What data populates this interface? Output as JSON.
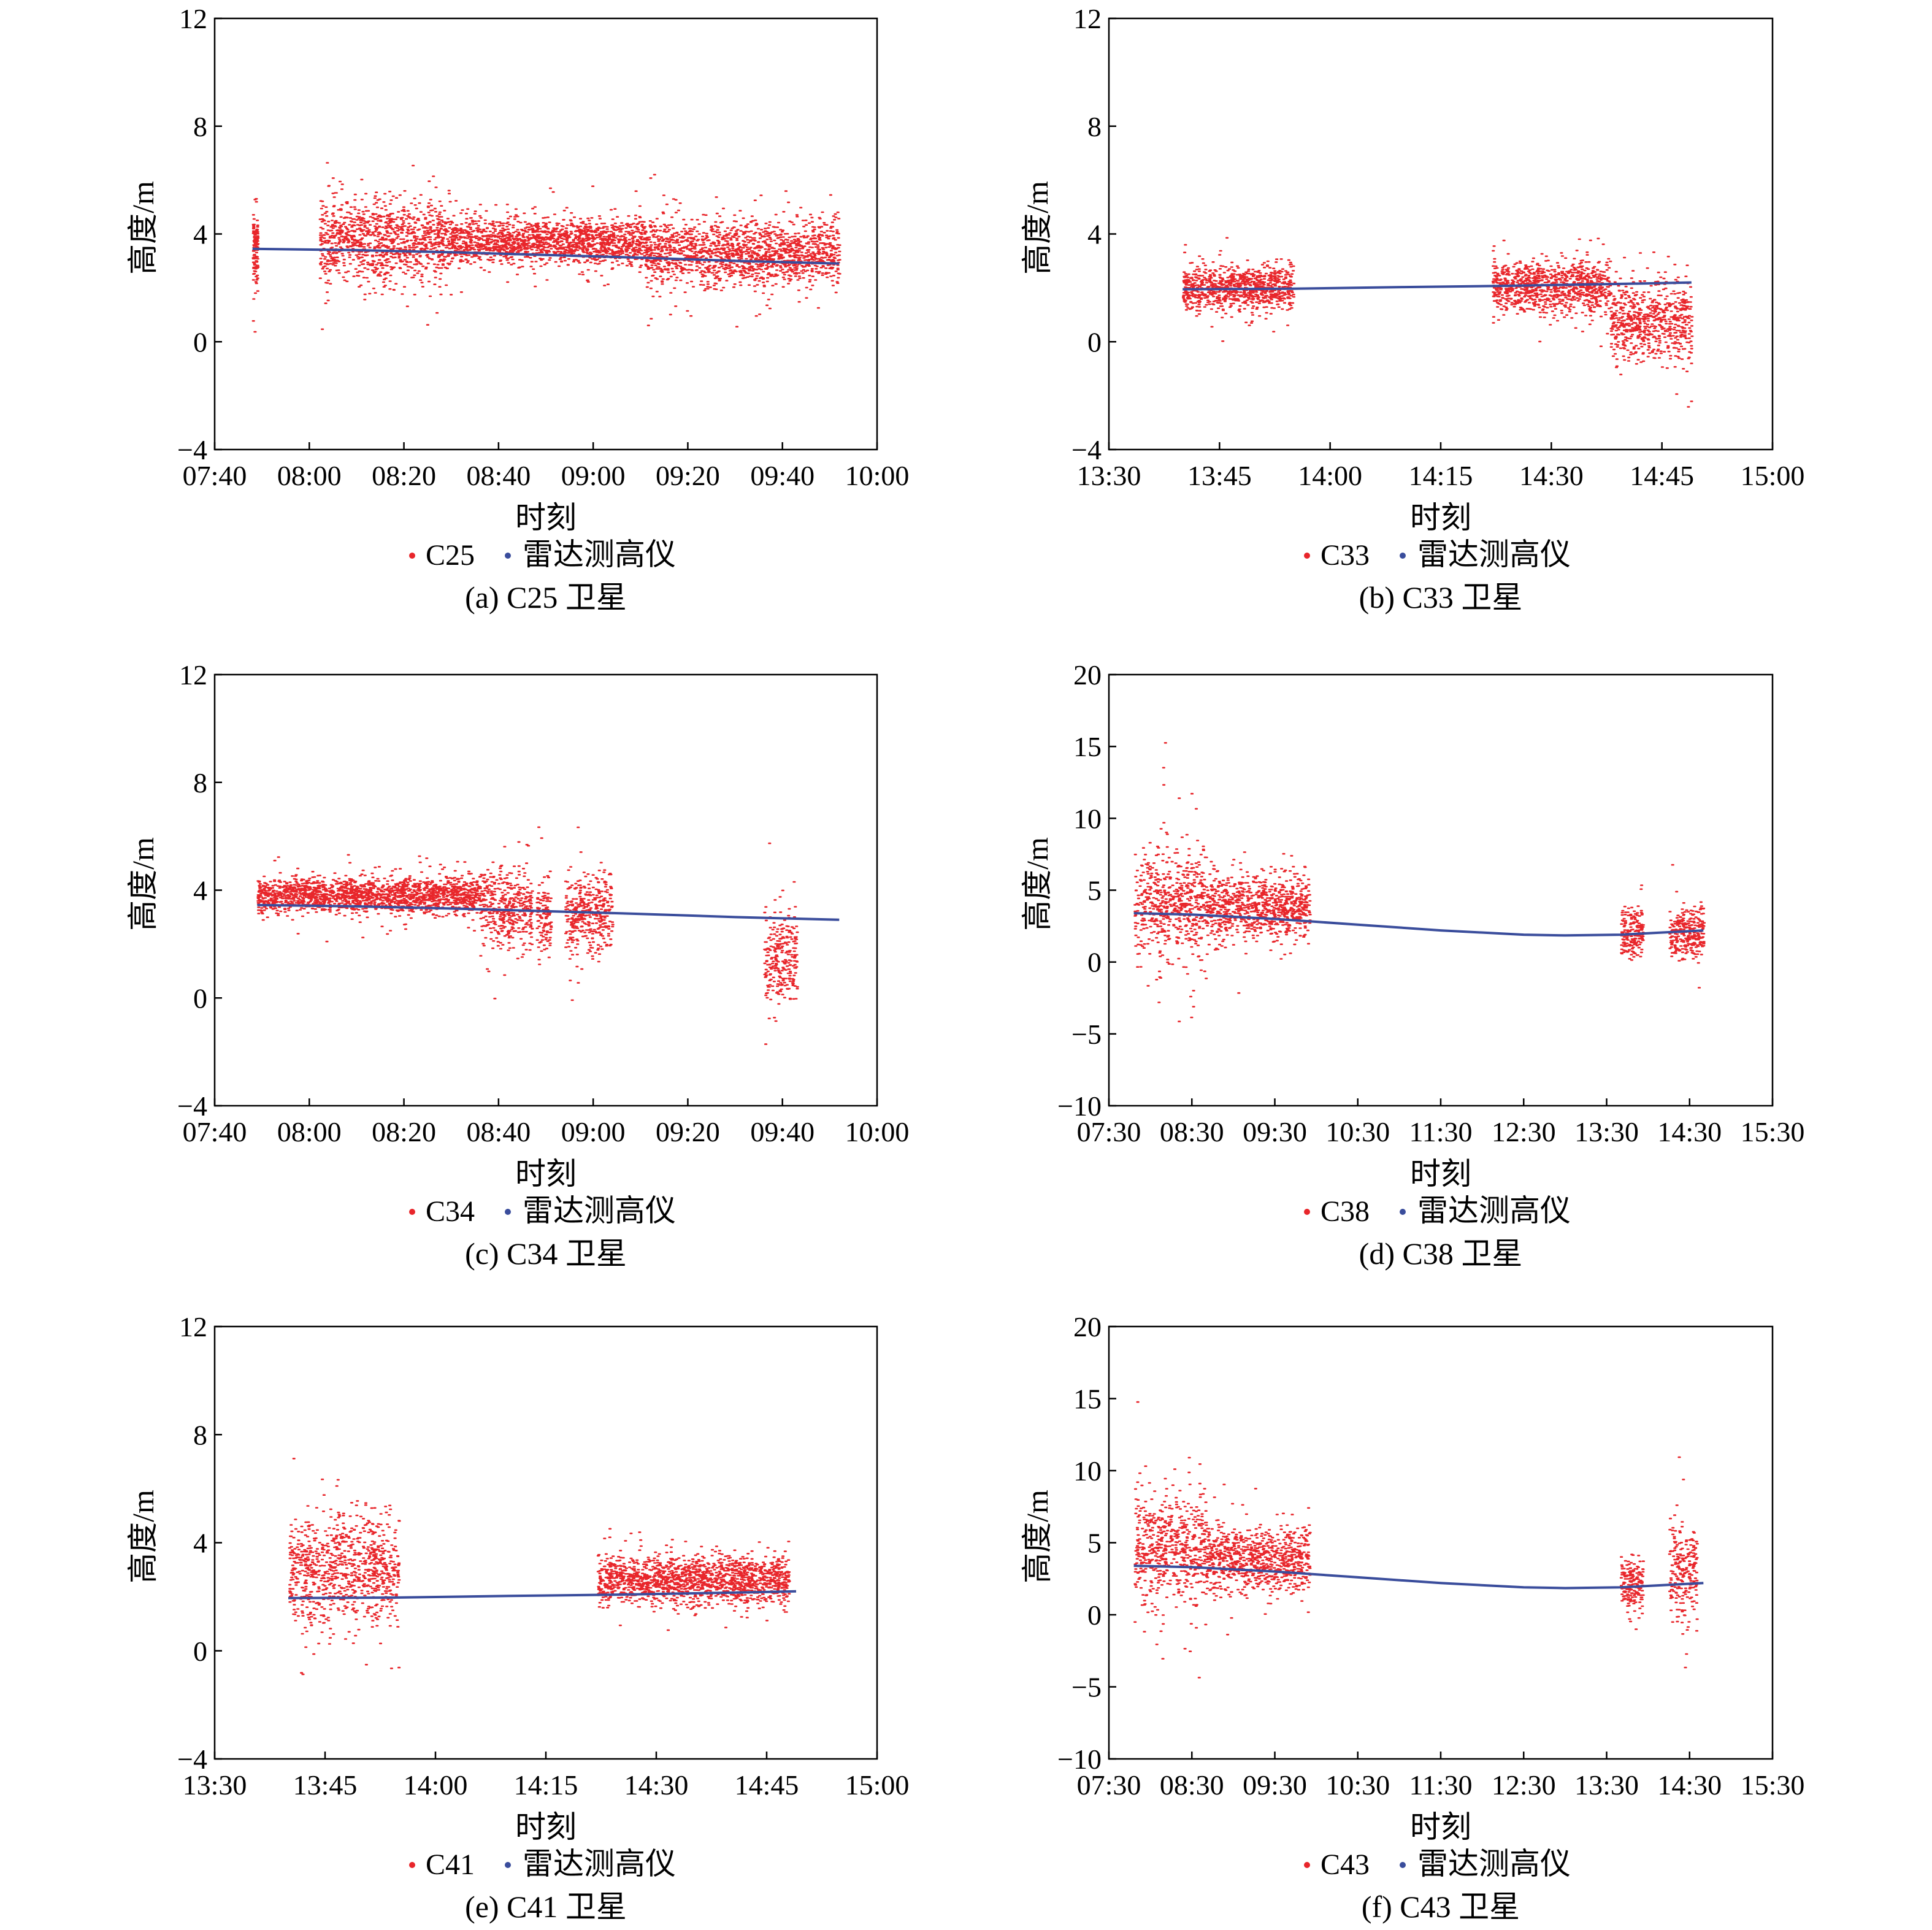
{
  "colors": {
    "series_dots": "#e8262b",
    "series_line": "#3a4d9c",
    "axis": "#000000",
    "background": "#ffffff"
  },
  "chart_data": [
    {
      "panel": "a",
      "type": "scatter",
      "xlabel": "时刻",
      "ylabel": "高度/m",
      "xlim": [
        "07:40",
        "10:00"
      ],
      "ylim": [
        -4,
        12
      ],
      "xticks": [
        "07:40",
        "08:00",
        "08:20",
        "08:40",
        "09:00",
        "09:20",
        "09:40",
        "10:00"
      ],
      "yticks": [
        "-4",
        "0",
        "4",
        "8",
        "12"
      ],
      "caption": "(a) C25 卫星",
      "legend": [
        "C25",
        "雷达测高仪"
      ],
      "series": [
        {
          "name": "C25",
          "kind": "points",
          "segments": [
            {
              "t_start": "07:48",
              "t_end": "07:49",
              "center": 3.4,
              "spread": 2.5
            },
            {
              "t_start": "08:02",
              "t_end": "08:30",
              "center": 3.8,
              "spread": 2.6
            },
            {
              "t_start": "08:30",
              "t_end": "09:11",
              "center": 3.7,
              "spread": 1.4
            },
            {
              "t_start": "09:11",
              "t_end": "09:52",
              "center": 3.3,
              "spread": 1.9
            }
          ]
        },
        {
          "name": "雷达测高仪",
          "kind": "line",
          "x": [
            "07:48",
            "08:10",
            "08:30",
            "08:50",
            "09:10",
            "09:30",
            "09:52"
          ],
          "y": [
            3.45,
            3.4,
            3.32,
            3.22,
            3.12,
            3.0,
            2.9
          ]
        }
      ]
    },
    {
      "panel": "b",
      "type": "scatter",
      "xlabel": "时刻",
      "ylabel": "高度/m",
      "xlim": [
        "13:30",
        "15:00"
      ],
      "ylim": [
        -4,
        12
      ],
      "xticks": [
        "13:30",
        "13:45",
        "14:00",
        "14:15",
        "14:30",
        "14:45",
        "15:00"
      ],
      "yticks": [
        "-4",
        "0",
        "4",
        "8",
        "12"
      ],
      "caption": "(b) C33 卫星",
      "legend": [
        "C33",
        "雷达测高仪"
      ],
      "series": [
        {
          "name": "C33",
          "kind": "points",
          "segments": [
            {
              "t_start": "13:40",
              "t_end": "13:55",
              "center": 2.0,
              "spread": 1.3
            },
            {
              "t_start": "14:22",
              "t_end": "14:38",
              "center": 2.0,
              "spread": 1.6
            },
            {
              "t_start": "14:38",
              "t_end": "14:49",
              "center": 0.8,
              "spread": 2.4
            }
          ]
        },
        {
          "name": "雷达测高仪",
          "kind": "line",
          "x": [
            "13:40",
            "13:55",
            "14:10",
            "14:25",
            "14:40",
            "14:49"
          ],
          "y": [
            1.95,
            1.97,
            2.03,
            2.08,
            2.15,
            2.2
          ]
        }
      ]
    },
    {
      "panel": "c",
      "type": "scatter",
      "xlabel": "时刻",
      "ylabel": "高度/m",
      "xlim": [
        "07:40",
        "10:00"
      ],
      "ylim": [
        -4,
        12
      ],
      "xticks": [
        "07:40",
        "08:00",
        "08:20",
        "08:40",
        "09:00",
        "09:20",
        "09:40",
        "10:00"
      ],
      "yticks": [
        "-4",
        "0",
        "4",
        "8",
        "12"
      ],
      "caption": "(c) C34 卫星",
      "legend": [
        "C34",
        "雷达测高仪"
      ],
      "series": [
        {
          "name": "C34",
          "kind": "points",
          "segments": [
            {
              "t_start": "07:49",
              "t_end": "08:36",
              "center": 3.8,
              "spread": 1.1
            },
            {
              "t_start": "08:36",
              "t_end": "08:47",
              "center": 3.3,
              "spread": 2.4
            },
            {
              "t_start": "08:48",
              "t_end": "08:51",
              "center": 3.0,
              "spread": 2.6
            },
            {
              "t_start": "08:54",
              "t_end": "09:04",
              "center": 3.2,
              "spread": 2.6
            },
            {
              "t_start": "09:36",
              "t_end": "09:43",
              "center": 1.5,
              "spread": 3.2
            }
          ]
        },
        {
          "name": "雷达测高仪",
          "kind": "line",
          "x": [
            "07:49",
            "08:10",
            "08:30",
            "08:50",
            "09:10",
            "09:30",
            "09:52"
          ],
          "y": [
            3.45,
            3.4,
            3.32,
            3.22,
            3.12,
            3.0,
            2.9
          ]
        }
      ]
    },
    {
      "panel": "d",
      "type": "scatter",
      "xlabel": "时刻",
      "ylabel": "高度/m",
      "xlim": [
        "07:30",
        "15:30"
      ],
      "ylim": [
        -10,
        20
      ],
      "xticks": [
        "07:30",
        "08:30",
        "09:30",
        "10:30",
        "11:30",
        "12:30",
        "13:30",
        "14:30",
        "15:30"
      ],
      "yticks": [
        "-10",
        "-5",
        "0",
        "5",
        "10",
        "15",
        "20"
      ],
      "caption": "(d) C38 卫星",
      "legend": [
        "C38",
        "雷达测高仪"
      ],
      "series": [
        {
          "name": "C38",
          "kind": "points",
          "segments": [
            {
              "t_start": "07:48",
              "t_end": "08:40",
              "center": 4.0,
              "spread": 6.5
            },
            {
              "t_start": "08:40",
              "t_end": "09:55",
              "center": 3.8,
              "spread": 3.8
            },
            {
              "t_start": "13:40",
              "t_end": "13:56",
              "center": 2.0,
              "spread": 2.8
            },
            {
              "t_start": "14:15",
              "t_end": "14:40",
              "center": 2.0,
              "spread": 2.8
            }
          ]
        },
        {
          "name": "雷达测高仪",
          "kind": "line",
          "x": [
            "07:48",
            "08:30",
            "09:30",
            "10:30",
            "11:30",
            "12:30",
            "13:00",
            "13:40",
            "14:40"
          ],
          "y": [
            3.4,
            3.3,
            3.0,
            2.6,
            2.2,
            1.9,
            1.85,
            1.9,
            2.2
          ]
        }
      ]
    },
    {
      "panel": "e",
      "type": "scatter",
      "xlabel": "时刻",
      "ylabel": "高度/m",
      "xlim": [
        "13:30",
        "15:00"
      ],
      "ylim": [
        -4,
        12
      ],
      "xticks": [
        "13:30",
        "13:45",
        "14:00",
        "14:15",
        "14:30",
        "14:45",
        "15:00"
      ],
      "yticks": [
        "-4",
        "0",
        "4",
        "8",
        "12"
      ],
      "caption": "(e) C41 卫星",
      "legend": [
        "C41",
        "雷达测高仪"
      ],
      "series": [
        {
          "name": "C41",
          "kind": "points",
          "segments": [
            {
              "t_start": "13:40",
              "t_end": "13:55",
              "center": 3.0,
              "spread": 3.4
            },
            {
              "t_start": "14:22",
              "t_end": "14:48",
              "center": 2.6,
              "spread": 1.5
            }
          ]
        },
        {
          "name": "雷达测高仪",
          "kind": "line",
          "x": [
            "13:40",
            "13:55",
            "14:10",
            "14:25",
            "14:40",
            "14:49"
          ],
          "y": [
            1.95,
            1.97,
            2.03,
            2.08,
            2.15,
            2.2
          ]
        }
      ]
    },
    {
      "panel": "f",
      "type": "scatter",
      "xlabel": "时刻",
      "ylabel": "高度/m",
      "xlim": [
        "07:30",
        "15:30"
      ],
      "ylim": [
        -10,
        20
      ],
      "xticks": [
        "07:30",
        "08:30",
        "09:30",
        "10:30",
        "11:30",
        "12:30",
        "13:30",
        "14:30",
        "15:30"
      ],
      "yticks": [
        "-10",
        "-5",
        "0",
        "5",
        "10",
        "15",
        "20"
      ],
      "caption": "(f) C43 卫星",
      "legend": [
        "C43",
        "雷达测高仪"
      ],
      "series": [
        {
          "name": "C43",
          "kind": "points",
          "segments": [
            {
              "t_start": "07:48",
              "t_end": "08:40",
              "center": 4.5,
              "spread": 7.0
            },
            {
              "t_start": "08:40",
              "t_end": "09:55",
              "center": 3.8,
              "spread": 3.8
            },
            {
              "t_start": "13:40",
              "t_end": "13:56",
              "center": 2.0,
              "spread": 3.2
            },
            {
              "t_start": "14:15",
              "t_end": "14:35",
              "center": 3.0,
              "spread": 5.5
            }
          ]
        },
        {
          "name": "雷达测高仪",
          "kind": "line",
          "x": [
            "07:48",
            "08:30",
            "09:30",
            "10:30",
            "11:30",
            "12:30",
            "13:00",
            "13:40",
            "14:40"
          ],
          "y": [
            3.4,
            3.3,
            3.0,
            2.6,
            2.2,
            1.9,
            1.85,
            1.9,
            2.2
          ]
        }
      ]
    }
  ]
}
